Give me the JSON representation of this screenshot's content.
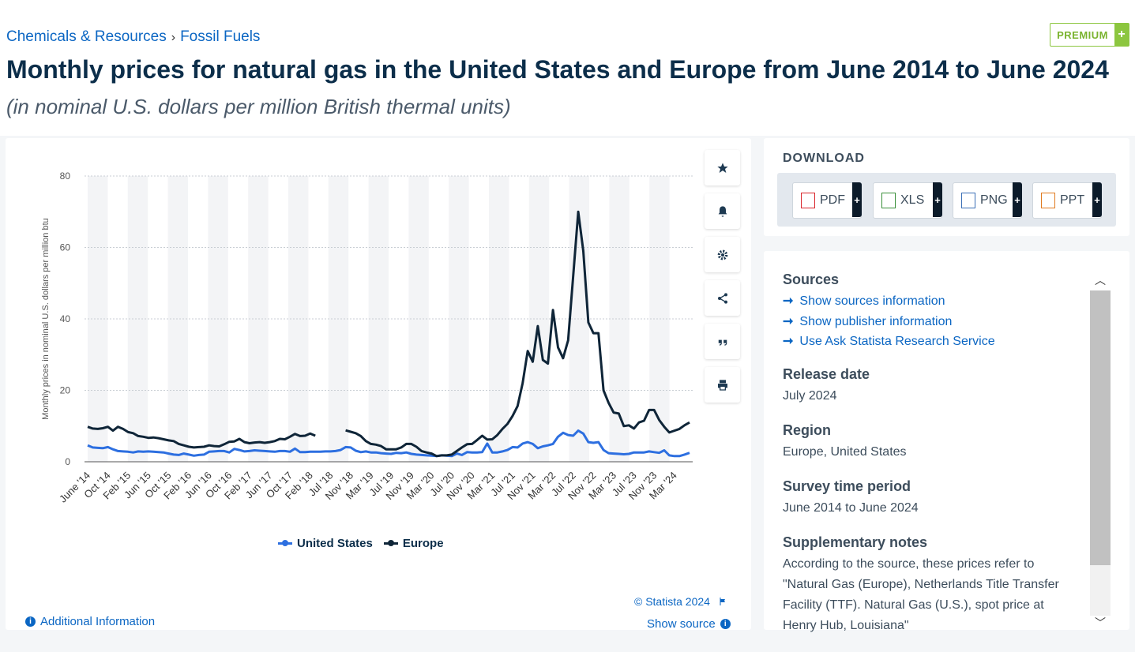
{
  "breadcrumb": {
    "item1": "Chemicals & Resources",
    "sep": "›",
    "item2": "Fossil Fuels"
  },
  "premium": {
    "label": "PREMIUM",
    "plus": "+"
  },
  "title": "Monthly prices for natural gas in the United States and Europe from June 2014 to June 2024",
  "subtitle": "(in nominal U.S. dollars per million British thermal units)",
  "tools": [
    "star-icon",
    "bell-icon",
    "gear-icon",
    "share-icon",
    "quote-icon",
    "print-icon"
  ],
  "footer": {
    "copyright": "© Statista 2024",
    "additional_info": "Additional Information",
    "show_source": "Show source"
  },
  "download": {
    "title": "DOWNLOAD",
    "buttons": [
      {
        "label": "PDF",
        "color": "#d9262c"
      },
      {
        "label": "XLS",
        "color": "#3a8f3a"
      },
      {
        "label": "PNG",
        "color": "#3b6fb6"
      },
      {
        "label": "PPT",
        "color": "#e07a1f"
      }
    ],
    "plus": "+"
  },
  "info": {
    "sources_title": "Sources",
    "links": [
      "Show sources information",
      "Show publisher information",
      "Use Ask Statista Research Service"
    ],
    "release_title": "Release date",
    "release": "July 2024",
    "region_title": "Region",
    "region": "Europe, United States",
    "period_title": "Survey time period",
    "period": "June 2014 to June 2024",
    "notes_title": "Supplementary notes",
    "notes": "According to the source, these prices refer to \"Natural Gas (Europe), Netherlands Title Transfer Facility (TTF). Natural Gas (U.S.), spot price at Henry Hub, Louisiana\""
  },
  "chart_data": {
    "type": "line",
    "ylabel": "Monthly prices in nominal U.S. dollars per million btu",
    "ylim": [
      0,
      80
    ],
    "yticks": [
      0,
      20,
      40,
      60,
      80
    ],
    "grid": true,
    "legend_position": "bottom",
    "x_start": "June '14",
    "x_tick_labels": [
      "June '14",
      "Oct '14",
      "Feb '15",
      "Jun '15",
      "Oct '15",
      "Feb '16",
      "Jun '16",
      "Oct '16",
      "Feb '17",
      "Jun '17",
      "Oct '17",
      "Feb '18",
      "Jul '18",
      "Nov '18",
      "Mar '19",
      "Jul '19",
      "Nov '19",
      "Mar '20",
      "Jul '20",
      "Nov '20",
      "Mar '21",
      "Jul '21",
      "Nov '21",
      "Mar '22",
      "Jul '22",
      "Nov '22",
      "Mar '23",
      "Jul '23",
      "Nov '23",
      "Mar '24"
    ],
    "series": [
      {
        "name": "United States",
        "color": "#2d6fe0",
        "values": [
          4.6,
          4.0,
          3.9,
          3.8,
          4.1,
          3.5,
          3.0,
          2.9,
          2.8,
          2.6,
          2.9,
          2.8,
          2.9,
          2.8,
          2.7,
          2.6,
          2.3,
          2.0,
          1.9,
          2.3,
          2.0,
          1.7,
          1.9,
          2.0,
          2.8,
          2.9,
          3.0,
          3.0,
          2.6,
          3.6,
          3.3,
          2.9,
          3.0,
          3.2,
          3.1,
          3.0,
          2.9,
          2.8,
          3.0,
          3.0,
          2.8,
          3.7,
          2.7,
          2.7,
          2.8,
          2.8,
          2.8,
          2.9,
          2.9,
          3.0,
          3.3,
          4.1,
          4.0,
          3.1,
          2.7,
          2.9,
          2.6,
          2.6,
          2.4,
          2.3,
          2.2,
          2.5,
          2.4,
          2.6,
          2.2,
          2.0,
          1.9,
          1.8,
          1.7,
          1.6,
          1.8,
          1.7,
          1.6,
          2.3,
          1.9,
          2.7,
          2.6,
          2.6,
          2.7,
          5.1,
          2.6,
          2.6,
          2.9,
          3.3,
          4.1,
          4.0,
          5.1,
          5.5,
          5.0,
          3.8,
          4.3,
          4.6,
          5.0,
          7.0,
          8.1,
          7.5,
          7.3,
          8.7,
          7.9,
          5.5,
          5.3,
          5.5,
          3.3,
          2.4,
          2.3,
          2.2,
          2.1,
          2.2,
          2.6,
          2.6,
          2.6,
          2.9,
          2.7,
          2.5,
          3.2,
          1.8,
          1.6,
          1.6,
          2.0,
          2.5
        ]
      },
      {
        "name": "Europe",
        "color": "#0f2538",
        "values": [
          9.8,
          9.3,
          9.2,
          9.4,
          9.8,
          8.7,
          9.8,
          9.2,
          8.3,
          8.0,
          7.2,
          7.0,
          6.7,
          6.8,
          6.6,
          6.3,
          6.0,
          5.8,
          5.0,
          4.6,
          4.2,
          4.0,
          4.1,
          4.2,
          4.6,
          4.4,
          4.3,
          4.9,
          5.6,
          5.7,
          6.4,
          5.5,
          5.2,
          5.4,
          5.5,
          5.3,
          5.5,
          5.8,
          6.4,
          6.3,
          7.0,
          7.8,
          7.2,
          7.3,
          7.9,
          7.3,
          null,
          null,
          null,
          null,
          null,
          8.8,
          8.4,
          8.0,
          7.2,
          5.8,
          5.0,
          4.8,
          4.4,
          3.5,
          3.5,
          3.5,
          4.0,
          5.0,
          5.0,
          4.2,
          3.0,
          2.6,
          2.3,
          1.6,
          1.8,
          1.8,
          2.0,
          3.0,
          4.0,
          4.9,
          5.0,
          6.1,
          7.3,
          6.2,
          6.3,
          7.5,
          9.2,
          10.6,
          12.8,
          15.6,
          22.0,
          31.0,
          28.0,
          38.0,
          28.5,
          27.5,
          42.5,
          32.0,
          29.0,
          34.0,
          52.0,
          70.0,
          59.0,
          39.0,
          36.0,
          36.0,
          20.0,
          16.5,
          13.8,
          13.5,
          10.0,
          10.2,
          9.3,
          11.0,
          11.5,
          14.5,
          14.5,
          11.7,
          9.8,
          8.2,
          8.7,
          9.2,
          10.2,
          11.0
        ]
      }
    ]
  }
}
